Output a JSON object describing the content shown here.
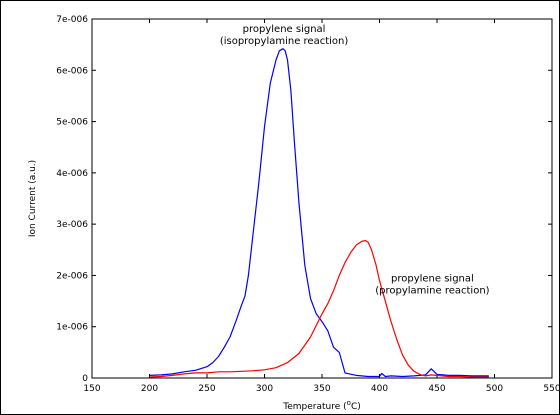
{
  "chart_data": {
    "type": "line",
    "title": "",
    "xlabel": "Temperature (",
    "xlabel_superscript": "o",
    "xlabel_suffix": "C)",
    "ylabel": "Ion Current (a.u.)",
    "xlim": [
      150,
      550
    ],
    "ylim": [
      0,
      7e-06
    ],
    "grid": false,
    "legend": "none",
    "x_ticks": [
      150,
      200,
      250,
      300,
      350,
      400,
      450,
      500,
      550
    ],
    "x_tick_labels": [
      "150",
      "200",
      "250",
      "300",
      "350",
      "400",
      "450",
      "500",
      "550"
    ],
    "y_ticks": [
      0,
      1e-06,
      2e-06,
      3e-06,
      4e-06,
      5e-06,
      6e-06,
      7e-06
    ],
    "y_tick_labels": [
      "0",
      "1e-006",
      "2e-006",
      "3e-006",
      "4e-006",
      "5e-006",
      "6e-006",
      "7e-006"
    ],
    "series": [
      {
        "color": "#0000ff",
        "x": [
          200,
          210,
          220,
          230,
          240,
          250,
          255,
          260,
          265,
          270,
          275,
          280,
          283,
          286,
          290,
          295,
          300,
          305,
          310,
          313,
          316,
          318,
          320,
          323,
          326,
          330,
          335,
          340,
          345,
          350,
          355,
          360,
          365,
          370,
          380,
          390,
          400,
          402,
          405,
          410,
          420,
          430,
          440,
          445,
          450,
          460,
          470,
          480,
          490,
          495
        ],
        "y": [
          5e-08,
          6e-08,
          8e-08,
          1.2e-07,
          1.5e-07,
          2.2e-07,
          3e-07,
          4.2e-07,
          6e-07,
          8e-07,
          1.1e-06,
          1.42e-06,
          1.6e-06,
          2e-06,
          2.8e-06,
          3.8e-06,
          4.9e-06,
          5.75e-06,
          6.2e-06,
          6.38e-06,
          6.42e-06,
          6.38e-06,
          6.2e-06,
          5.6e-06,
          4.6e-06,
          3.4e-06,
          2.2e-06,
          1.55e-06,
          1.25e-06,
          1.1e-06,
          9.2e-07,
          6e-07,
          5e-07,
          1e-07,
          5e-08,
          3e-08,
          3e-08,
          9e-08,
          3e-08,
          4e-08,
          3e-08,
          4e-08,
          6e-08,
          1.8e-07,
          7e-08,
          5e-08,
          5e-08,
          4e-08,
          4e-08,
          4e-08
        ]
      },
      {
        "color": "#ff0000",
        "x": [
          200,
          210,
          220,
          230,
          240,
          250,
          260,
          270,
          280,
          290,
          300,
          310,
          320,
          330,
          340,
          350,
          355,
          360,
          365,
          370,
          375,
          380,
          385,
          388,
          390,
          393,
          397,
          400,
          405,
          410,
          415,
          420,
          425,
          430,
          435,
          440,
          445,
          450,
          460,
          470,
          480,
          490,
          495
        ],
        "y": [
          2e-08,
          3e-08,
          5e-08,
          8e-08,
          1e-07,
          1e-07,
          1.2e-07,
          1.2e-07,
          1.3e-07,
          1.4e-07,
          1.6e-07,
          2e-07,
          3e-07,
          4.8e-07,
          8e-07,
          1.25e-06,
          1.45e-06,
          1.7e-06,
          2e-06,
          2.25e-06,
          2.45e-06,
          2.6e-06,
          2.67e-06,
          2.68e-06,
          2.65e-06,
          2.5e-06,
          2.2e-06,
          1.9e-06,
          1.5e-06,
          1.1e-06,
          7.5e-07,
          4.5e-07,
          2.5e-07,
          1.3e-07,
          7e-08,
          4e-08,
          6e-08,
          5e-08,
          3e-08,
          3e-08,
          2e-08,
          2e-08,
          2e-08
        ]
      }
    ],
    "annotations": [
      {
        "lines": [
          "propylene signal",
          "(isopropylamine reaction)"
        ],
        "x": 317,
        "y": 6.75e-06
      },
      {
        "lines": [
          "propylene signal",
          "(propylamine reaction)"
        ],
        "x": 446,
        "y": 1.88e-06
      }
    ]
  }
}
